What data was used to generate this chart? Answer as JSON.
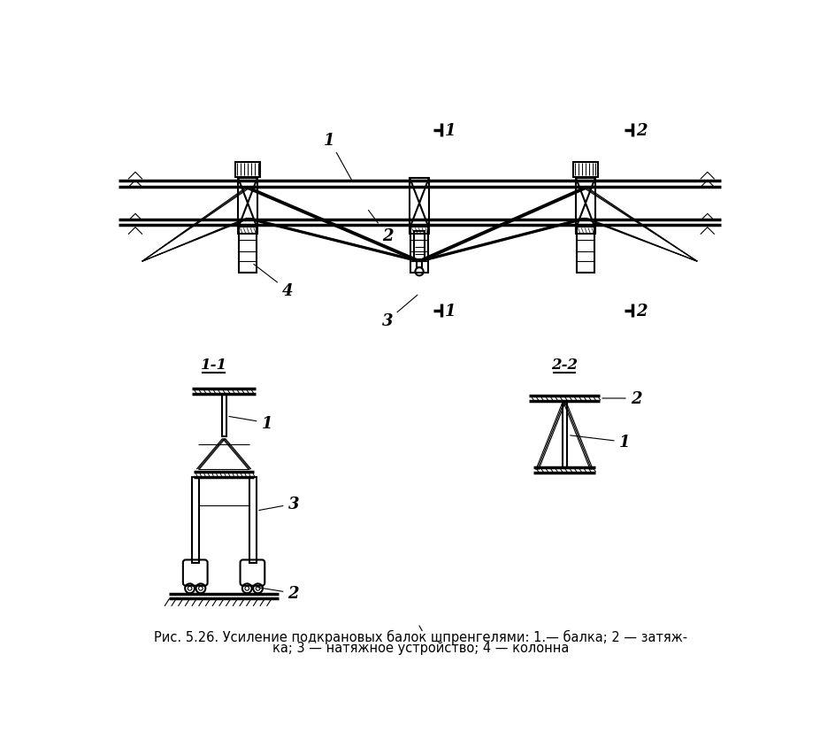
{
  "bg_color": "#ffffff",
  "line_color": "#000000",
  "caption_line1": "Рис. 5.26. Усиление подкрановых балок шпренгелями: 1.— балка; 2 — затяж-",
  "caption_line2": "ка; 3 — натяжное устройство; 4 — колонна",
  "lw": 1.5,
  "lw_thick": 2.5,
  "lw_thin": 0.8
}
